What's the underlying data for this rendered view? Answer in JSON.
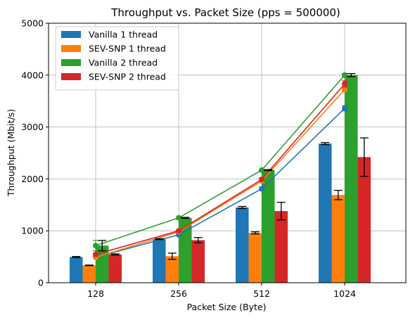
{
  "chart_data": {
    "type": "bar",
    "title": "Throughput vs. Packet Size (pps = 500000)",
    "xlabel": "Packet Size (Byte)",
    "ylabel": "Throughput (Mbit/s)",
    "ylim": [
      0,
      5000
    ],
    "yticks": [
      0,
      1000,
      2000,
      3000,
      4000,
      5000
    ],
    "categories": [
      "128",
      "256",
      "512",
      "1024"
    ],
    "grid": true,
    "legend_position": "top-left",
    "series": [
      {
        "name": "Vanilla 1 thread",
        "color": "#1f77b4",
        "bar_values": [
          495,
          840,
          1450,
          2680
        ],
        "bar_errors": [
          10,
          10,
          20,
          20
        ],
        "line_values": [
          490,
          925,
          1810,
          3360
        ],
        "line_errors": [
          15,
          15,
          30,
          50
        ]
      },
      {
        "name": "SEV-SNP 1 thread",
        "color": "#ff7f0e",
        "bar_values": [
          335,
          510,
          960,
          1690
        ],
        "bar_errors": [
          5,
          60,
          20,
          90
        ],
        "line_values": [
          490,
          980,
          1960,
          3720
        ],
        "line_errors": [
          10,
          15,
          20,
          20
        ]
      },
      {
        "name": "Vanilla 2 thread",
        "color": "#2ca02c",
        "bar_values": [
          715,
          1250,
          2170,
          4000
        ],
        "bar_errors": [
          100,
          10,
          10,
          30
        ],
        "line_values": [
          715,
          1250,
          2170,
          4000
        ],
        "line_errors": [
          100,
          10,
          10,
          30
        ]
      },
      {
        "name": "SEV-SNP 2 thread",
        "color": "#d62728",
        "bar_values": [
          545,
          820,
          1380,
          2420
        ],
        "bar_errors": [
          10,
          50,
          170,
          370
        ],
        "line_values": [
          545,
          1000,
          1990,
          3830
        ],
        "line_errors": [
          10,
          15,
          25,
          60
        ]
      }
    ]
  }
}
